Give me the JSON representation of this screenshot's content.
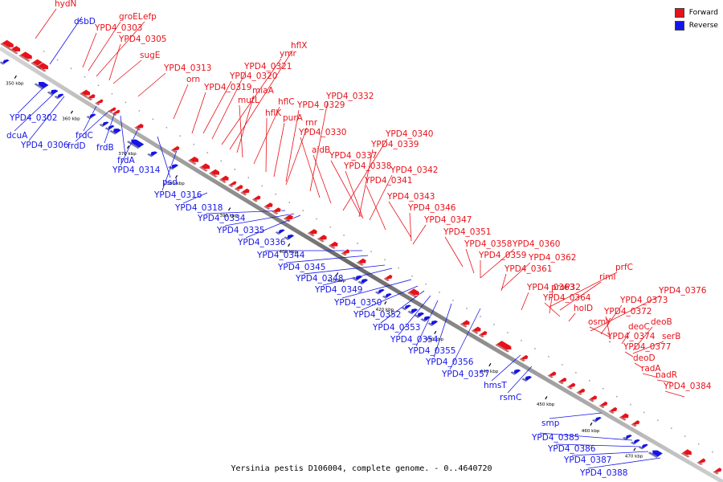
{
  "caption": "Yersinia pestis D106004, complete genome. - 0..4640720",
  "legend": [
    {
      "label": "Forward",
      "color": "#e8121a"
    },
    {
      "label": "Reverse",
      "color": "#1515e8"
    }
  ],
  "ticks": [
    "350 kbp",
    "360 kbp",
    "370 kbp",
    "380 kbp",
    "390 kbp",
    "400 kbp",
    "410 kbp",
    "420 kbp",
    "430 kbp",
    "440 kbp",
    "450 kbp",
    "460 kbp",
    "470 kbp"
  ],
  "forward_labels": [
    "hydN",
    "groEL",
    "efp",
    "YPD4_0303",
    "YPD4_0305",
    "sugE",
    "YPD4_0313",
    "orn",
    "YPD4_0319",
    "YPD4_0320",
    "YPD4_0321",
    "ymr",
    "hflX",
    "miaA",
    "mutL",
    "hflC",
    "hflK",
    "purA",
    "rnr",
    "YPD4_0329",
    "YPD4_0332",
    "YPD4_0330",
    "aidB",
    "YPD4_0340",
    "YPD4_0339",
    "YPD4_0337",
    "YPD4_0338",
    "YPD4_0342",
    "YPD4_0341",
    "YPD4_0343",
    "YPD4_0346",
    "YPD4_0347",
    "YPD4_0351",
    "YPD4_0358",
    "YPD4_0360",
    "YPD4_0359",
    "YPD4_0362",
    "YPD4_0361",
    "prfC",
    "rimI",
    "YPD4_0363",
    "proP32",
    "YPD4_0364",
    "holD",
    "YPD4_0376",
    "YPD4_0373",
    "YPD4_0372",
    "osmY",
    "deoC",
    "deoB",
    "YPD4_0374",
    "serB",
    "YPD4_0377",
    "deoD",
    "radA",
    "nadR",
    "YPD4_0384"
  ],
  "reverse_labels": [
    "dsbD",
    "YPD4_0302",
    "dcuA",
    "YPD4_0306",
    "frdC",
    "frdD",
    "frdB",
    "frdA",
    "YPD4_0314",
    "psd",
    "YPD4_0316",
    "YPD4_0318",
    "YPD4_0334",
    "YPD4_0335",
    "YPD4_0336",
    "YPD4_0344",
    "YPD4_0345",
    "YPD4_0348",
    "YPD4_0349",
    "YPD4_0350",
    "YPD4_0352",
    "YPD4_0353",
    "YPD4_0354",
    "YPD4_0355",
    "YPD4_0356",
    "YPD4_0357",
    "hmsT",
    "rsmC",
    "smp",
    "YPD4_0385",
    "YPD4_0386",
    "YPD4_0387",
    "YPD4_0388"
  ]
}
